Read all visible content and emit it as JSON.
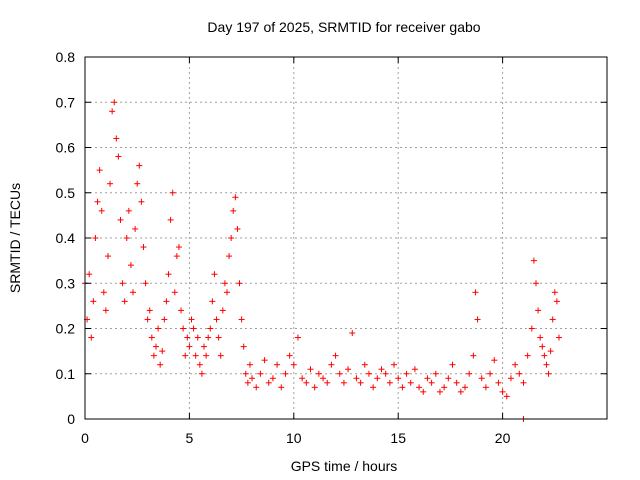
{
  "chart_data": {
    "type": "scatter",
    "title": "Day 197 of 2025, SRMTID for receiver gabo",
    "xlabel": "GPS time / hours",
    "ylabel": "SRMTID / TECUs",
    "xlim": [
      0,
      25
    ],
    "ylim": [
      0,
      0.8
    ],
    "xticks": [
      0,
      5,
      10,
      15,
      20
    ],
    "xtick_labels": [
      "0",
      "5",
      "10",
      "15",
      "20"
    ],
    "yticks": [
      0,
      0.1,
      0.2,
      0.3,
      0.4,
      0.5,
      0.6,
      0.7,
      0.8
    ],
    "ytick_labels": [
      "0",
      "0.1",
      "0.2",
      "0.3",
      "0.4",
      "0.5",
      "0.6",
      "0.7",
      "0.8"
    ],
    "grid": true,
    "marker": "plus",
    "color": "#ff0000",
    "series": [
      {
        "name": "SRMTID",
        "x": [
          0.0,
          0.1,
          0.2,
          0.3,
          0.4,
          0.5,
          0.6,
          0.7,
          0.8,
          0.9,
          1.0,
          1.1,
          1.2,
          1.3,
          1.4,
          1.5,
          1.6,
          1.7,
          1.8,
          1.9,
          2.0,
          2.1,
          2.2,
          2.3,
          2.4,
          2.5,
          2.6,
          2.7,
          2.8,
          2.9,
          3.0,
          3.1,
          3.2,
          3.3,
          3.4,
          3.5,
          3.6,
          3.7,
          3.8,
          3.9,
          4.0,
          4.1,
          4.2,
          4.3,
          4.4,
          4.5,
          4.6,
          4.7,
          4.8,
          4.9,
          5.0,
          5.1,
          5.2,
          5.3,
          5.4,
          5.5,
          5.6,
          5.7,
          5.8,
          5.9,
          6.0,
          6.1,
          6.2,
          6.3,
          6.4,
          6.5,
          6.6,
          6.7,
          6.8,
          6.9,
          7.0,
          7.1,
          7.2,
          7.3,
          7.4,
          7.5,
          7.6,
          7.7,
          7.8,
          7.9,
          8.0,
          8.2,
          8.4,
          8.6,
          8.8,
          9.0,
          9.2,
          9.4,
          9.6,
          9.8,
          10.0,
          10.2,
          10.4,
          10.6,
          10.8,
          11.0,
          11.2,
          11.4,
          11.6,
          11.8,
          12.0,
          12.2,
          12.4,
          12.6,
          12.8,
          13.0,
          13.2,
          13.4,
          13.6,
          13.8,
          14.0,
          14.2,
          14.4,
          14.6,
          14.8,
          15.0,
          15.2,
          15.4,
          15.6,
          15.8,
          16.0,
          16.2,
          16.4,
          16.6,
          16.8,
          17.0,
          17.2,
          17.4,
          17.6,
          17.8,
          18.0,
          18.2,
          18.4,
          18.6,
          18.7,
          18.8,
          19.0,
          19.2,
          19.4,
          19.6,
          19.8,
          20.0,
          20.2,
          20.4,
          20.6,
          20.8,
          21.0,
          21.2,
          21.4,
          21.5,
          21.6,
          21.7,
          21.8,
          21.9,
          22.0,
          22.1,
          22.2,
          22.3,
          22.4,
          22.5,
          22.6,
          22.7,
          21.0
        ],
        "y": [
          0.3,
          0.22,
          0.32,
          0.18,
          0.26,
          0.4,
          0.48,
          0.55,
          0.46,
          0.28,
          0.24,
          0.36,
          0.52,
          0.68,
          0.7,
          0.62,
          0.58,
          0.44,
          0.3,
          0.26,
          0.4,
          0.46,
          0.34,
          0.28,
          0.42,
          0.52,
          0.56,
          0.48,
          0.38,
          0.3,
          0.22,
          0.24,
          0.18,
          0.14,
          0.16,
          0.2,
          0.12,
          0.15,
          0.22,
          0.26,
          0.32,
          0.44,
          0.5,
          0.28,
          0.36,
          0.38,
          0.24,
          0.2,
          0.14,
          0.18,
          0.16,
          0.22,
          0.2,
          0.14,
          0.18,
          0.12,
          0.1,
          0.16,
          0.14,
          0.18,
          0.2,
          0.26,
          0.32,
          0.22,
          0.18,
          0.14,
          0.24,
          0.3,
          0.28,
          0.36,
          0.4,
          0.46,
          0.49,
          0.42,
          0.3,
          0.22,
          0.16,
          0.1,
          0.08,
          0.12,
          0.09,
          0.07,
          0.1,
          0.13,
          0.08,
          0.09,
          0.12,
          0.07,
          0.1,
          0.14,
          0.12,
          0.18,
          0.09,
          0.08,
          0.11,
          0.07,
          0.1,
          0.09,
          0.08,
          0.12,
          0.14,
          0.1,
          0.08,
          0.11,
          0.19,
          0.09,
          0.08,
          0.12,
          0.1,
          0.07,
          0.09,
          0.11,
          0.1,
          0.08,
          0.12,
          0.09,
          0.07,
          0.1,
          0.08,
          0.11,
          0.07,
          0.06,
          0.09,
          0.08,
          0.1,
          0.06,
          0.07,
          0.09,
          0.12,
          0.08,
          0.06,
          0.07,
          0.1,
          0.14,
          0.28,
          0.22,
          0.09,
          0.07,
          0.1,
          0.13,
          0.08,
          0.06,
          0.05,
          0.09,
          0.12,
          0.1,
          0.08,
          0.14,
          0.2,
          0.35,
          0.3,
          0.24,
          0.18,
          0.16,
          0.14,
          0.12,
          0.1,
          0.15,
          0.22,
          0.28,
          0.26,
          0.18,
          0.0
        ]
      }
    ]
  }
}
